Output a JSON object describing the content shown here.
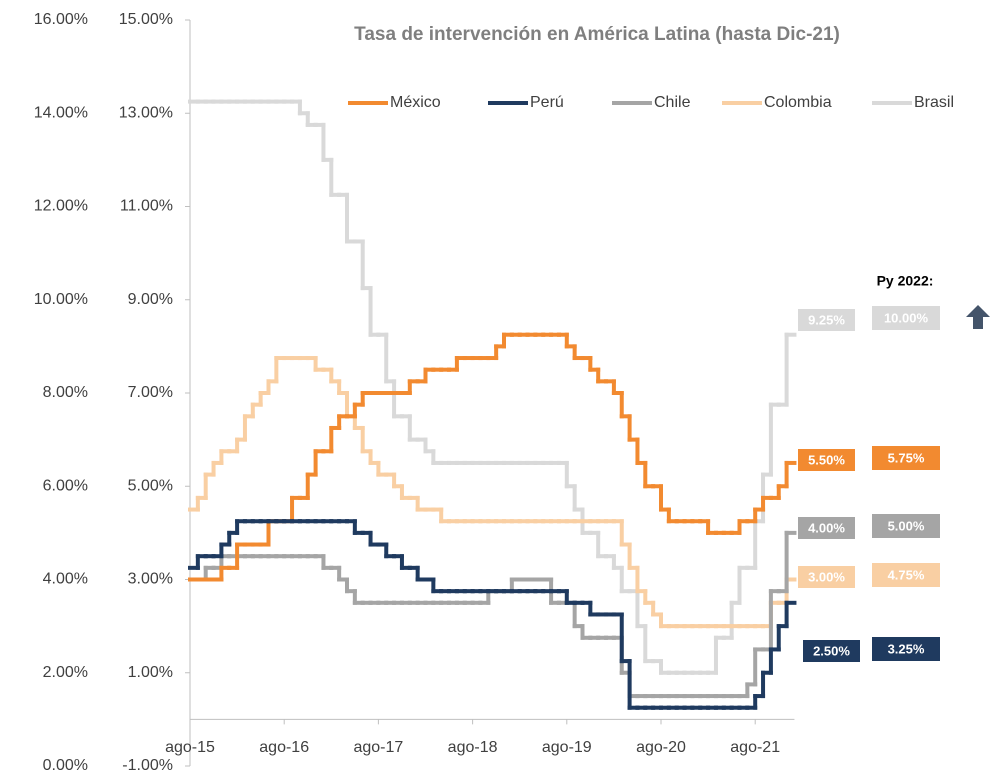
{
  "chart_data": {
    "type": "step-line",
    "title": "Tasa de intervención en América Latina (hasta Dic-21)",
    "projection_title": "Py 2022:",
    "categories": [
      "ago-15",
      null,
      null,
      null,
      null,
      null,
      null,
      null,
      null,
      null,
      null,
      null,
      "ago-16",
      null,
      null,
      null,
      null,
      null,
      null,
      null,
      null,
      null,
      null,
      null,
      "ago-17",
      null,
      null,
      null,
      null,
      null,
      null,
      null,
      null,
      null,
      null,
      null,
      "ago-18",
      null,
      null,
      null,
      null,
      null,
      null,
      null,
      null,
      null,
      null,
      null,
      "ago-19",
      null,
      null,
      null,
      null,
      null,
      null,
      null,
      null,
      null,
      null,
      null,
      "ago-20",
      null,
      null,
      null,
      null,
      null,
      null,
      null,
      null,
      null,
      null,
      null,
      "ago-21",
      null,
      null,
      null,
      null
    ],
    "ylim": [
      0,
      16
    ],
    "yticks": [
      {
        "value": 0,
        "label": "0.00%"
      },
      {
        "value": 2,
        "label": "2.00%"
      },
      {
        "value": 4,
        "label": "4.00%"
      },
      {
        "value": 6,
        "label": "6.00%"
      },
      {
        "value": 8,
        "label": "8.00%"
      },
      {
        "value": 10,
        "label": "10.00%"
      },
      {
        "value": 12,
        "label": "12.00%"
      },
      {
        "value": 14,
        "label": "14.00%"
      },
      {
        "value": 16,
        "label": "16.00%"
      }
    ],
    "y2lim": [
      -1,
      15
    ],
    "y2ticks": [
      {
        "value": -1,
        "label": "-1.00%"
      },
      {
        "value": 1,
        "label": "1.00%"
      },
      {
        "value": 3,
        "label": "3.00%"
      },
      {
        "value": 5,
        "label": "5.00%"
      },
      {
        "value": 7,
        "label": "7.00%"
      },
      {
        "value": 9,
        "label": "9.00%"
      },
      {
        "value": 11,
        "label": "11.00%"
      },
      {
        "value": 13,
        "label": "13.00%"
      },
      {
        "value": 15,
        "label": "15.00%"
      }
    ],
    "legend": "top",
    "series": [
      {
        "name": "México",
        "color": "#f28a30",
        "axis": "y2",
        "end_label": "5.50%",
        "projection": "5.75%",
        "values": [
          3,
          3,
          3,
          3,
          3.25,
          3.25,
          3.75,
          3.75,
          3.75,
          3.75,
          4.25,
          4.25,
          4.25,
          4.75,
          4.75,
          5.25,
          5.75,
          5.75,
          6.25,
          6.5,
          6.5,
          6.75,
          7,
          7,
          7,
          7,
          7,
          7,
          7.25,
          7.25,
          7.5,
          7.5,
          7.5,
          7.5,
          7.75,
          7.75,
          7.75,
          7.75,
          7.75,
          8,
          8.25,
          8.25,
          8.25,
          8.25,
          8.25,
          8.25,
          8.25,
          8.25,
          8,
          7.75,
          7.75,
          7.5,
          7.25,
          7.25,
          7,
          6.5,
          6,
          5.5,
          5,
          5,
          4.5,
          4.25,
          4.25,
          4.25,
          4.25,
          4.25,
          4,
          4,
          4,
          4,
          4.25,
          4.25,
          4.5,
          4.75,
          4.75,
          5,
          5.5
        ]
      },
      {
        "name": "Perú",
        "color": "#1f3a5f",
        "axis": "y2",
        "end_label": "2.50%",
        "projection": "3.25%",
        "values": [
          3.25,
          3.5,
          3.5,
          3.5,
          3.75,
          4,
          4.25,
          4.25,
          4.25,
          4.25,
          4.25,
          4.25,
          4.25,
          4.25,
          4.25,
          4.25,
          4.25,
          4.25,
          4.25,
          4.25,
          4.25,
          4,
          4,
          3.75,
          3.75,
          3.5,
          3.5,
          3.25,
          3.25,
          3,
          3,
          2.75,
          2.75,
          2.75,
          2.75,
          2.75,
          2.75,
          2.75,
          2.75,
          2.75,
          2.75,
          2.75,
          2.75,
          2.75,
          2.75,
          2.75,
          2.75,
          2.75,
          2.5,
          2.5,
          2.5,
          2.25,
          2.25,
          2.25,
          2.25,
          1.25,
          0.25,
          0.25,
          0.25,
          0.25,
          0.25,
          0.25,
          0.25,
          0.25,
          0.25,
          0.25,
          0.25,
          0.25,
          0.25,
          0.25,
          0.25,
          0.25,
          0.5,
          1,
          1.5,
          2,
          2.5
        ]
      },
      {
        "name": "Chile",
        "color": "#a5a5a5",
        "axis": "y2",
        "end_label": "4.00%",
        "projection": "5.00%",
        "values": [
          3,
          3,
          3.25,
          3.25,
          3.5,
          3.5,
          3.5,
          3.5,
          3.5,
          3.5,
          3.5,
          3.5,
          3.5,
          3.5,
          3.5,
          3.5,
          3.5,
          3.25,
          3.25,
          3,
          2.75,
          2.5,
          2.5,
          2.5,
          2.5,
          2.5,
          2.5,
          2.5,
          2.5,
          2.5,
          2.5,
          2.5,
          2.5,
          2.5,
          2.5,
          2.5,
          2.5,
          2.5,
          2.75,
          2.75,
          2.75,
          3,
          3,
          3,
          3,
          3,
          2.5,
          2.5,
          2.5,
          2,
          1.75,
          1.75,
          1.75,
          1.75,
          1.75,
          1,
          0.5,
          0.5,
          0.5,
          0.5,
          0.5,
          0.5,
          0.5,
          0.5,
          0.5,
          0.5,
          0.5,
          0.5,
          0.5,
          0.5,
          0.5,
          0.75,
          1.5,
          1.5,
          2.75,
          2.75,
          4
        ]
      },
      {
        "name": "Colombia",
        "color": "#f9cfa3",
        "axis": "y2",
        "end_label": "3.00%",
        "projection": "4.75%",
        "values": [
          4.5,
          4.75,
          5.25,
          5.5,
          5.75,
          5.75,
          6,
          6.5,
          6.75,
          7,
          7.25,
          7.75,
          7.75,
          7.75,
          7.75,
          7.75,
          7.5,
          7.5,
          7.25,
          7,
          6.5,
          6.25,
          5.75,
          5.5,
          5.25,
          5.25,
          5,
          4.75,
          4.75,
          4.5,
          4.5,
          4.5,
          4.25,
          4.25,
          4.25,
          4.25,
          4.25,
          4.25,
          4.25,
          4.25,
          4.25,
          4.25,
          4.25,
          4.25,
          4.25,
          4.25,
          4.25,
          4.25,
          4.25,
          4.25,
          4.25,
          4.25,
          4.25,
          4.25,
          4.25,
          3.75,
          3.25,
          2.75,
          2.5,
          2.25,
          2,
          2,
          2,
          2,
          2,
          2,
          2,
          2,
          2,
          2,
          2,
          2,
          2,
          2,
          2.5,
          2.5,
          3
        ]
      },
      {
        "name": "Brasil",
        "color": "#d9d9d9",
        "axis": "y",
        "end_label": "9.25%",
        "projection": "10.00%",
        "values": [
          14.25,
          14.25,
          14.25,
          14.25,
          14.25,
          14.25,
          14.25,
          14.25,
          14.25,
          14.25,
          14.25,
          14.25,
          14.25,
          14.25,
          14,
          13.75,
          13.75,
          13,
          12.25,
          12.25,
          11.25,
          11.25,
          10.25,
          9.25,
          9.25,
          8.25,
          7.5,
          7.5,
          7,
          7,
          6.75,
          6.5,
          6.5,
          6.5,
          6.5,
          6.5,
          6.5,
          6.5,
          6.5,
          6.5,
          6.5,
          6.5,
          6.5,
          6.5,
          6.5,
          6.5,
          6.5,
          6.5,
          6,
          5.5,
          5,
          5,
          4.5,
          4.5,
          4.25,
          3.75,
          3.75,
          3,
          2.25,
          2.25,
          2,
          2,
          2,
          2,
          2,
          2,
          2,
          2.75,
          2.75,
          3.5,
          4.25,
          4.25,
          5.25,
          6.25,
          7.75,
          7.75,
          9.25
        ]
      }
    ]
  }
}
